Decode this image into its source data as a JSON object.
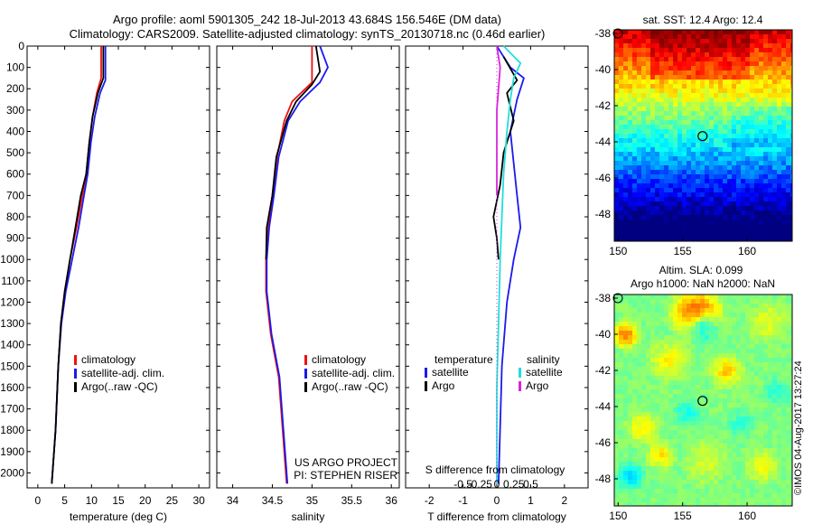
{
  "header": {
    "title_line1": "Argo profile: aoml 5901305_242 18-Jul-2013 43.684S 156.546E (DM data)",
    "title_line2": "Climatology: CARS2009. Satellite-adjusted climatology: synTS_20130718.nc (0.46d earlier)"
  },
  "colors": {
    "climatology": "#ee1111",
    "satellite": "#1a1aee",
    "argo": "#000000",
    "argo_salinity": "#dd22dd",
    "satellite_salinity": "#22dddd"
  },
  "chart_data": [
    {
      "id": "temperature",
      "type": "line",
      "xlabel": "temperature (deg C)",
      "ylabel": "",
      "xlim": [
        -2,
        32
      ],
      "ylim": [
        2070,
        0
      ],
      "xticks": [
        0,
        5,
        10,
        15,
        20,
        25,
        30
      ],
      "yticks": [
        0,
        100,
        200,
        300,
        400,
        500,
        600,
        700,
        800,
        900,
        1000,
        1100,
        1200,
        1300,
        1400,
        1500,
        1600,
        1700,
        1800,
        1900,
        2000
      ],
      "legend": [
        "climatology",
        "satellite-adj. clim.",
        "Argo(..raw -QC)"
      ],
      "series": [
        {
          "name": "climatology",
          "color": "#ee1111",
          "points": [
            [
              11.8,
              0
            ],
            [
              11.8,
              150
            ],
            [
              11.0,
              220
            ],
            [
              10.2,
              330
            ],
            [
              9.6,
              450
            ],
            [
              9.0,
              600
            ],
            [
              8.3,
              700
            ],
            [
              7.2,
              850
            ],
            [
              6.0,
              1000
            ],
            [
              5.0,
              1150
            ],
            [
              4.3,
              1300
            ],
            [
              3.8,
              1500
            ],
            [
              3.3,
              1800
            ],
            [
              2.6,
              2050
            ]
          ]
        },
        {
          "name": "satellite-adj. clim.",
          "color": "#1a1aee",
          "points": [
            [
              12.6,
              0
            ],
            [
              12.6,
              160
            ],
            [
              11.6,
              220
            ],
            [
              10.6,
              330
            ],
            [
              9.9,
              450
            ],
            [
              9.3,
              600
            ],
            [
              8.6,
              700
            ],
            [
              7.6,
              850
            ],
            [
              6.4,
              1000
            ],
            [
              5.2,
              1150
            ],
            [
              4.4,
              1300
            ],
            [
              3.8,
              1500
            ],
            [
              3.3,
              1800
            ],
            [
              2.6,
              2050
            ]
          ]
        },
        {
          "name": "Argo(..raw -QC)",
          "color": "#000000",
          "points": [
            [
              12.2,
              0
            ],
            [
              12.2,
              150
            ],
            [
              11.2,
              220
            ],
            [
              10.2,
              330
            ],
            [
              9.6,
              450
            ],
            [
              9.0,
              600
            ],
            [
              8.0,
              700
            ],
            [
              7.0,
              850
            ],
            [
              6.0,
              1000
            ],
            [
              5.0,
              1150
            ],
            [
              4.3,
              1300
            ],
            [
              3.8,
              1500
            ],
            [
              3.3,
              1800
            ],
            [
              2.6,
              2050
            ]
          ]
        }
      ]
    },
    {
      "id": "salinity",
      "type": "line",
      "xlabel": "salinity",
      "xlim": [
        33.8,
        36.1
      ],
      "ylim": [
        2070,
        0
      ],
      "xticks": [
        34,
        34.5,
        35,
        35.5,
        36
      ],
      "legend": [
        "climatology",
        "satellite-adj. clim.",
        "Argo(..raw -QC)"
      ],
      "series": [
        {
          "name": "climatology",
          "color": "#ee1111",
          "points": [
            [
              35.0,
              0
            ],
            [
              35.0,
              170
            ],
            [
              34.75,
              260
            ],
            [
              34.65,
              350
            ],
            [
              34.56,
              520
            ],
            [
              34.5,
              700
            ],
            [
              34.45,
              850
            ],
            [
              34.42,
              1000
            ],
            [
              34.42,
              1150
            ],
            [
              34.48,
              1350
            ],
            [
              34.58,
              1550
            ],
            [
              34.63,
              1800
            ],
            [
              34.68,
              2050
            ]
          ]
        },
        {
          "name": "satellite-adj. clim.",
          "color": "#1a1aee",
          "points": [
            [
              35.1,
              0
            ],
            [
              35.2,
              100
            ],
            [
              35.1,
              170
            ],
            [
              34.85,
              260
            ],
            [
              34.7,
              350
            ],
            [
              34.58,
              520
            ],
            [
              34.52,
              700
            ],
            [
              34.46,
              850
            ],
            [
              34.43,
              1000
            ],
            [
              34.43,
              1150
            ],
            [
              34.49,
              1350
            ],
            [
              34.59,
              1550
            ],
            [
              34.64,
              1800
            ],
            [
              34.69,
              2050
            ]
          ]
        },
        {
          "name": "Argo(..raw -QC)",
          "color": "#000000",
          "points": [
            [
              35.05,
              0
            ],
            [
              35.1,
              120
            ],
            [
              35.0,
              180
            ],
            [
              34.8,
              260
            ],
            [
              34.68,
              350
            ],
            [
              34.55,
              520
            ],
            [
              34.5,
              700
            ],
            [
              34.43,
              850
            ],
            [
              34.42,
              1000
            ]
          ]
        }
      ],
      "annotations": [
        "US ARGO PROJECT",
        "PI: STEPHEN RISER"
      ]
    },
    {
      "id": "differences",
      "type": "line",
      "xlabel": "T difference from climatology",
      "xlabel_top": "S difference from climatology",
      "xlim": [
        -2.7,
        2.7
      ],
      "ylim": [
        2070,
        0
      ],
      "xticks": [
        -2,
        -1,
        0,
        1,
        2
      ],
      "xticklabels": [
        "-2",
        "-1",
        "0",
        "1",
        "2"
      ],
      "xticks_s": [
        -0.5,
        -0.25,
        0,
        0.25,
        0.5
      ],
      "xticklabels_s": [
        "-0.5",
        "-0.25",
        "0",
        "0.25",
        "0.5"
      ],
      "legend_titles": [
        "temperature",
        "salinity"
      ],
      "legend": [
        "satellite",
        "Argo",
        "satellite",
        "Argo"
      ],
      "series": [
        {
          "name": "T satellite",
          "color": "#1a1aee",
          "points": [
            [
              0,
              0
            ],
            [
              0.4,
              100
            ],
            [
              0.8,
              150
            ],
            [
              0.6,
              250
            ],
            [
              0.4,
              400
            ],
            [
              0.5,
              550
            ],
            [
              0.6,
              700
            ],
            [
              0.7,
              850
            ],
            [
              0.5,
              1000
            ],
            [
              0.3,
              1200
            ],
            [
              0.15,
              1500
            ],
            [
              0.05,
              2050
            ]
          ]
        },
        {
          "name": "T Argo",
          "color": "#000000",
          "points": [
            [
              0.2,
              50
            ],
            [
              0.6,
              160
            ],
            [
              0.3,
              220
            ],
            [
              0.5,
              350
            ],
            [
              0.2,
              500
            ],
            [
              0.1,
              650
            ],
            [
              -0.1,
              800
            ],
            [
              0.0,
              900
            ],
            [
              0.05,
              1000
            ]
          ]
        },
        {
          "name": "S satellite",
          "color": "#22dddd",
          "points": [
            [
              0.2,
              0
            ],
            [
              0.7,
              80
            ],
            [
              0.5,
              150
            ],
            [
              0.4,
              250
            ],
            [
              0.3,
              400
            ],
            [
              0.2,
              600
            ],
            [
              0.15,
              800
            ],
            [
              0.1,
              1000
            ],
            [
              0.05,
              1300
            ],
            [
              0.0,
              1600
            ],
            [
              0.0,
              2050
            ]
          ]
        },
        {
          "name": "S Argo",
          "color": "#dd22dd",
          "points": [
            [
              0.0,
              0
            ],
            [
              0.1,
              100
            ],
            [
              0.0,
              300
            ],
            [
              0.0,
              700
            ]
          ]
        }
      ]
    },
    {
      "id": "sst_map",
      "type": "heatmap",
      "title": "sat. SST: 12.4 Argo: 12.4",
      "xlim": [
        149.7,
        163.5
      ],
      "ylim": [
        -49.5,
        -37.8
      ],
      "xticks": [
        150,
        155,
        160
      ],
      "yticks": [
        -38,
        -40,
        -42,
        -44,
        -46,
        -48
      ],
      "argo_position": [
        156.546,
        -43.684
      ]
    },
    {
      "id": "sla_map",
      "type": "heatmap",
      "title": "Altim. SLA: 0.099",
      "subtitle": "Argo h1000: NaN h2000: NaN",
      "xlim": [
        149.7,
        163.5
      ],
      "ylim": [
        -49.5,
        -37.8
      ],
      "xticks": [
        150,
        155,
        160
      ],
      "yticks": [
        -38,
        -40,
        -42,
        -44,
        -46,
        -48
      ],
      "argo_position": [
        156.546,
        -43.684
      ]
    }
  ],
  "footer": {
    "stamp": "©IMOS 04-Aug-2017 13:27:24"
  }
}
